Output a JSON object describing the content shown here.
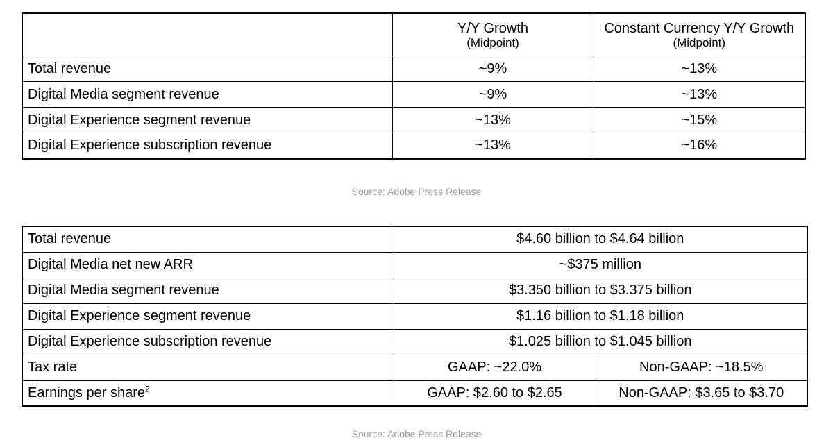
{
  "growth_table": {
    "columns": [
      {
        "title": "Y/Y Growth",
        "subtitle": "(Midpoint)"
      },
      {
        "title": "Constant Currency Y/Y Growth",
        "subtitle": "(Midpoint)"
      }
    ],
    "rows": [
      {
        "label": "Total revenue",
        "yy": "~9%",
        "cc": "~13%"
      },
      {
        "label": "Digital Media segment revenue",
        "yy": "~9%",
        "cc": "~13%"
      },
      {
        "label": "Digital Experience segment revenue",
        "yy": "~13%",
        "cc": "~15%"
      },
      {
        "label": "Digital Experience subscription revenue",
        "yy": "~13%",
        "cc": "~16%"
      }
    ]
  },
  "source_1": "Source: Adobe Press Release",
  "guidance_table": {
    "rows": [
      {
        "label": "Total revenue",
        "value": "$4.60 billion to $4.64 billion"
      },
      {
        "label": "Digital Media net new ARR",
        "value": "~$375 million"
      },
      {
        "label": "Digital Media segment revenue",
        "value": "$3.350 billion to $3.375 billion"
      },
      {
        "label": "Digital Experience segment revenue",
        "value": "$1.16 billion to $1.18 billion"
      },
      {
        "label": "Digital Experience subscription revenue",
        "value": "$1.025 billion to $1.045 billion"
      }
    ],
    "tax_rate": {
      "label": "Tax rate",
      "gaap": "GAAP: ~22.0%",
      "non_gaap": "Non-GAAP: ~18.5%"
    },
    "eps": {
      "label": "Earnings per share",
      "footnote": "2",
      "gaap": "GAAP: $2.60 to $2.65",
      "non_gaap": "Non-GAAP: $3.65 to $3.70"
    }
  },
  "source_2": "Source: Adobe Press Release"
}
